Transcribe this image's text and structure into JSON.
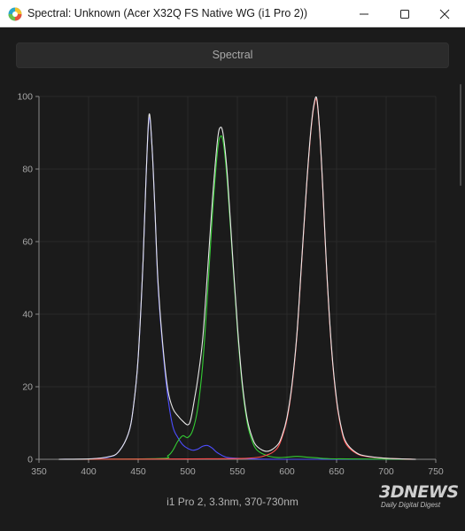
{
  "window": {
    "title": "Spectral: Unknown (Acer X32Q FS Native WG (i1 Pro 2))",
    "controls": {
      "minimize_icon": "minimize-icon",
      "maximize_icon": "maximize-icon",
      "close_icon": "close-icon"
    }
  },
  "tab": {
    "label": "Spectral"
  },
  "caption": "i1 Pro 2, 3.3nm, 370-730nm",
  "watermark": {
    "main": "3DNEWS",
    "sub": "Daily Digital Digest"
  },
  "colors": {
    "background": "#1b1b1b",
    "grid": "#2a2a2a",
    "axis": "#8a8a8a",
    "blue": "#4d4dff",
    "green": "#33cc33",
    "red": "#ff4d4d",
    "white": "#e8e8e8"
  },
  "chart_data": {
    "type": "line",
    "title": "",
    "xlabel": "",
    "ylabel": "",
    "xlim": [
      350,
      750
    ],
    "ylim": [
      0,
      100
    ],
    "xticks": [
      "350",
      "400",
      "450",
      "500",
      "550",
      "600",
      "650",
      "700",
      "750"
    ],
    "yticks": [
      "0",
      "20",
      "40",
      "60",
      "80",
      "100"
    ],
    "grid": true,
    "series": [
      {
        "color": "blue",
        "x": [
          370,
          400,
          420,
          430,
          440,
          445,
          450,
          455,
          458,
          461,
          464,
          467,
          470,
          475,
          480,
          485,
          490,
          495,
          500,
          505,
          510,
          515,
          520,
          525,
          530,
          540,
          560,
          600,
          730
        ],
        "y": [
          0,
          0.1,
          0.6,
          2,
          7,
          14,
          28,
          55,
          78,
          94,
          86,
          68,
          48,
          30,
          17,
          9,
          6,
          4,
          3,
          2.5,
          2.8,
          3.6,
          3.8,
          3,
          1.8,
          0.5,
          0.2,
          0,
          0
        ]
      },
      {
        "color": "green",
        "x": [
          370,
          470,
          480,
          485,
          490,
          495,
          500,
          505,
          510,
          515,
          520,
          525,
          530,
          533,
          536,
          540,
          545,
          550,
          555,
          560,
          565,
          570,
          580,
          590,
          600,
          610,
          620,
          630,
          640,
          660,
          730
        ],
        "y": [
          0,
          0.2,
          1,
          2.5,
          5,
          6.5,
          6,
          8,
          14,
          26,
          46,
          68,
          85,
          89,
          87,
          76,
          56,
          36,
          20,
          10,
          5,
          2.5,
          1,
          0.5,
          0.6,
          0.8,
          0.6,
          0.4,
          0.2,
          0.1,
          0
        ]
      },
      {
        "color": "red",
        "x": [
          370,
          500,
          560,
          580,
          590,
          595,
          600,
          605,
          610,
          615,
          620,
          624,
          627,
          630,
          633,
          636,
          640,
          645,
          650,
          655,
          660,
          670,
          680,
          700,
          730
        ],
        "y": [
          0,
          0.1,
          0.3,
          1.2,
          3,
          6,
          11,
          20,
          34,
          55,
          76,
          90,
          97,
          99,
          90,
          75,
          52,
          30,
          16,
          8,
          4,
          1.6,
          0.8,
          0.3,
          0
        ]
      },
      {
        "color": "white",
        "x": [
          370,
          400,
          420,
          430,
          440,
          445,
          450,
          455,
          458,
          461,
          464,
          467,
          470,
          475,
          480,
          485,
          490,
          495,
          500,
          503,
          507,
          510,
          515,
          520,
          525,
          530,
          533,
          536,
          540,
          545,
          550,
          555,
          560,
          565,
          570,
          580,
          590,
          595,
          600,
          605,
          610,
          615,
          620,
          624,
          627,
          630,
          633,
          636,
          640,
          645,
          650,
          655,
          660,
          670,
          680,
          700,
          730
        ],
        "y": [
          0,
          0.1,
          0.7,
          2,
          7,
          14,
          28,
          55,
          78,
          95,
          86,
          68,
          49,
          31,
          19,
          14,
          12,
          10.5,
          9.5,
          11,
          17,
          22,
          33,
          52,
          72,
          88,
          91.5,
          89,
          78,
          57,
          37,
          21,
          11,
          6,
          3.5,
          2.2,
          3.8,
          6.5,
          11.5,
          20.5,
          34.5,
          55.5,
          76.5,
          90.5,
          97.5,
          99.5,
          90.5,
          75.5,
          52.5,
          30.5,
          16.5,
          8.5,
          4.5,
          1.8,
          0.9,
          0.3,
          0
        ]
      }
    ]
  }
}
